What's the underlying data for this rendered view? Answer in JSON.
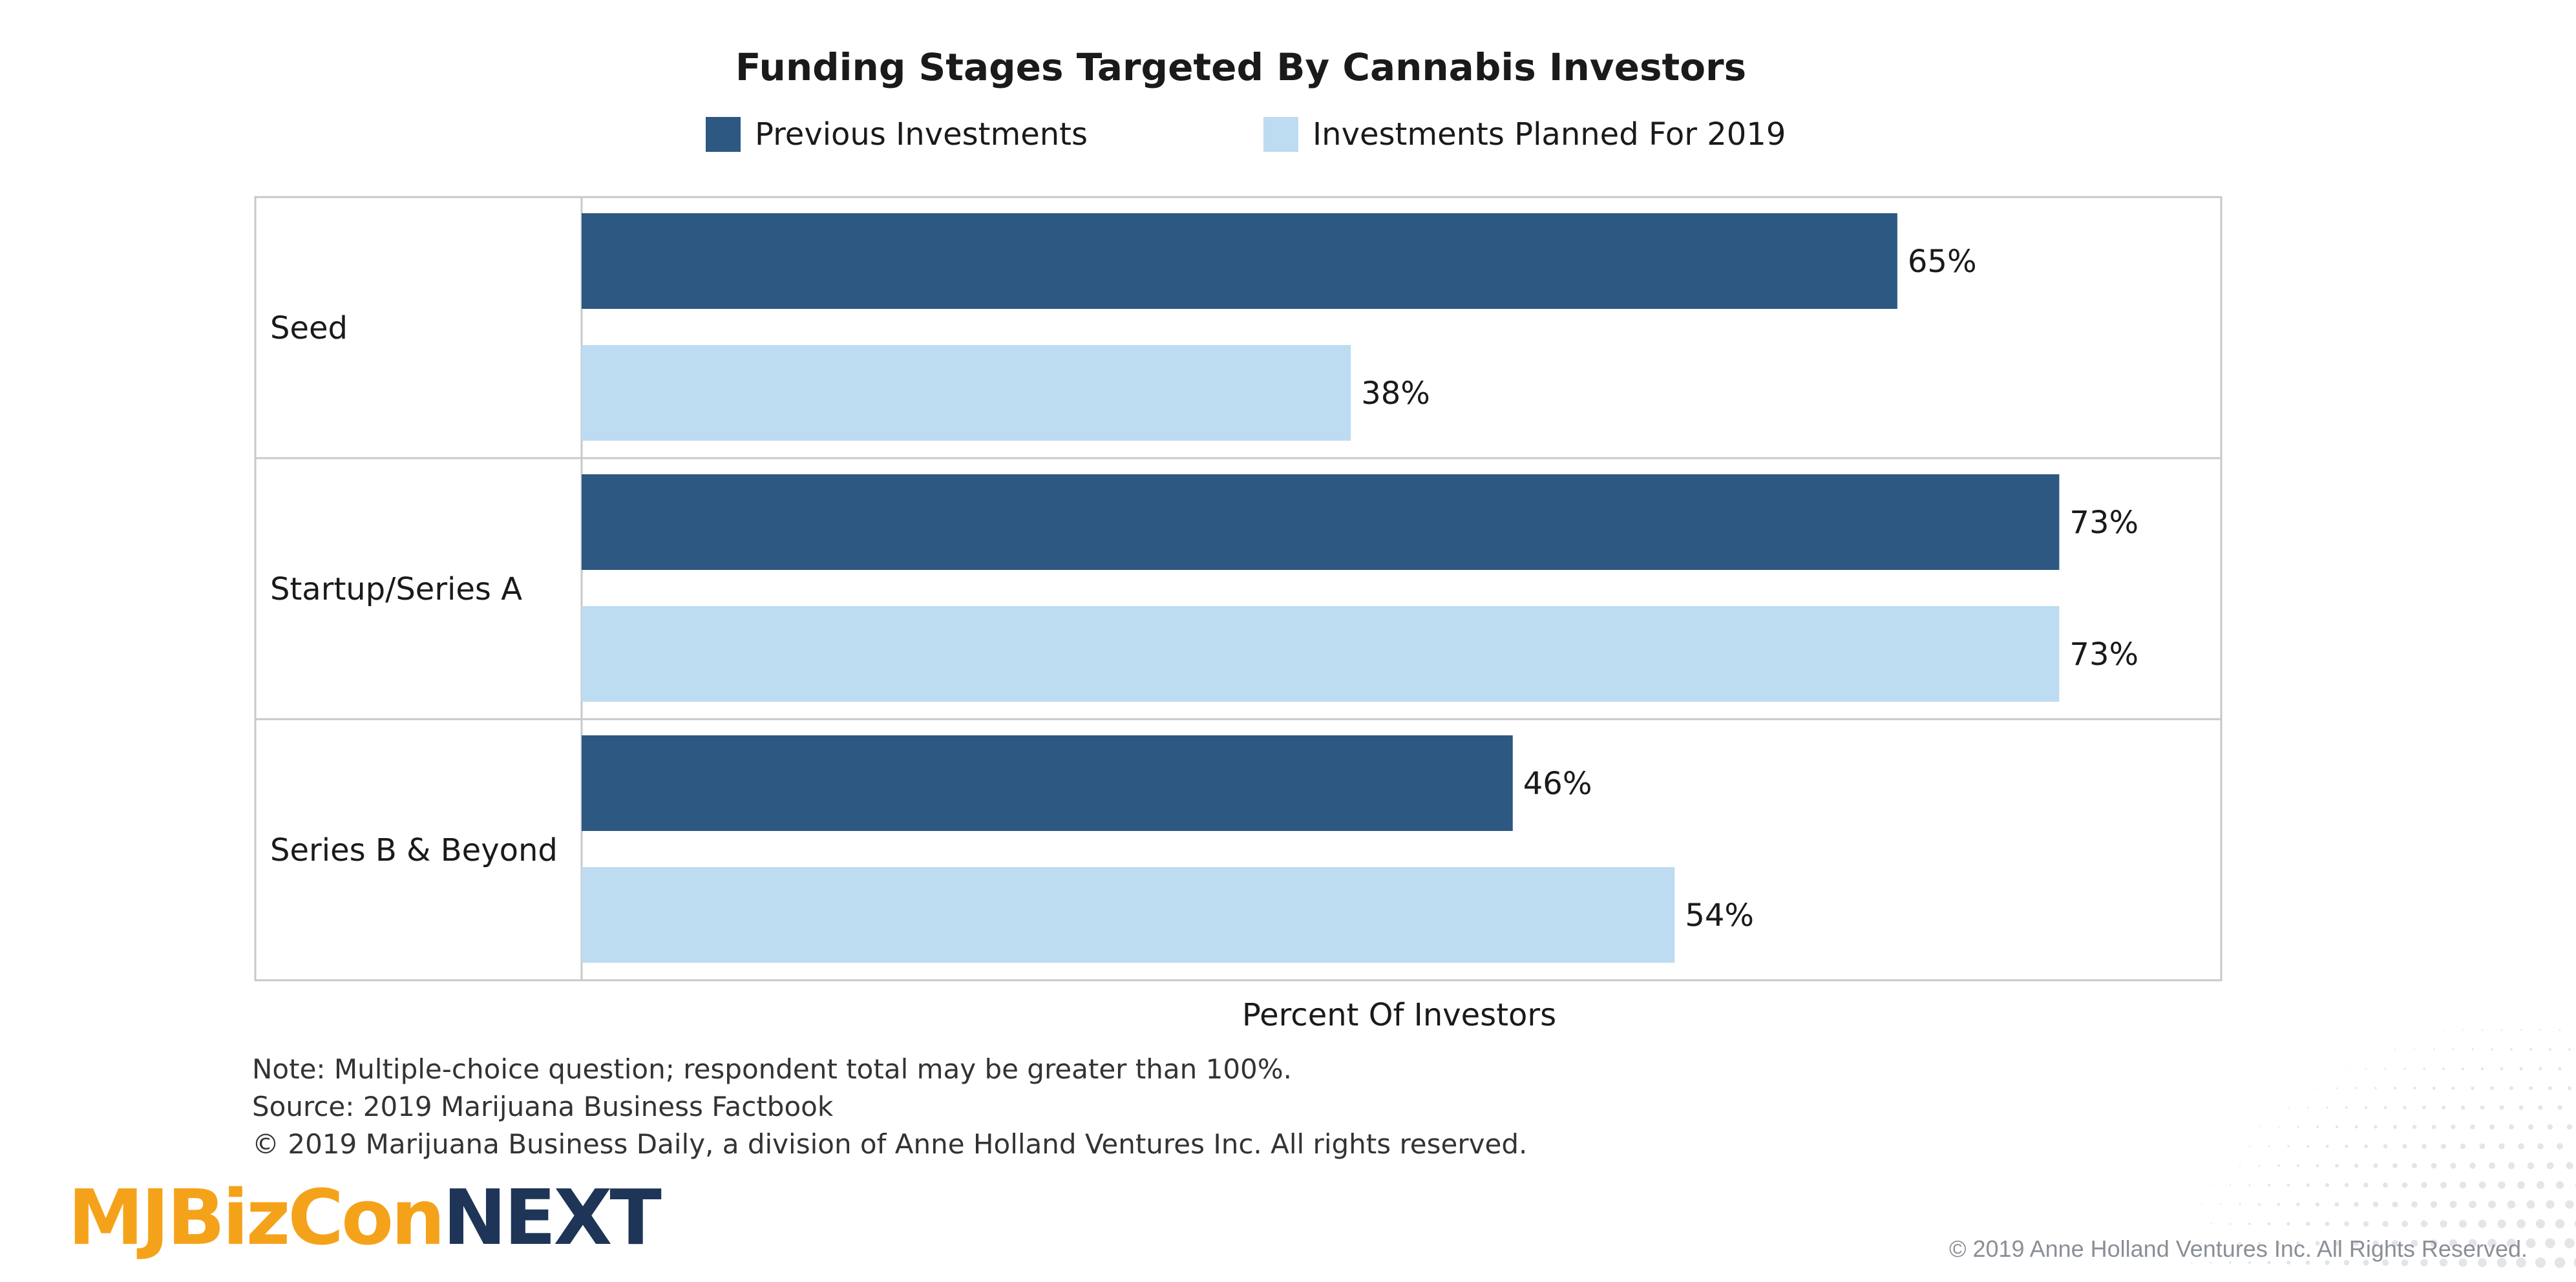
{
  "chart_data": {
    "type": "bar",
    "orientation": "horizontal",
    "title": "Funding Stages Targeted By Cannabis Investors",
    "xlabel": "Percent Of Investors",
    "ylabel": "",
    "categories": [
      "Seed",
      "Startup/Series A",
      "Series B & Beyond"
    ],
    "series": [
      {
        "name": "Previous Investments",
        "values": [
          65,
          73,
          46
        ],
        "color": "#2c5882"
      },
      {
        "name": "Investments Planned For 2019",
        "values": [
          38,
          73,
          54
        ],
        "color": "#bddcf1"
      }
    ],
    "value_suffix": "%",
    "xlim": [
      0,
      81
    ],
    "legend_position": "top",
    "grid": false
  },
  "notes": {
    "note": "Note: Multiple-choice question; respondent total may be greater than 100%.",
    "source": "Source: 2019 Marijuana Business Factbook",
    "copyright": "© 2019 Marijuana Business Daily, a division of Anne Holland Ventures Inc. All rights reserved."
  },
  "branding": {
    "logo_part1": "MJBizCon",
    "logo_part2": "NEXT",
    "logo_color1": "#f5a21b",
    "logo_color2": "#1f3557",
    "footer_copyright": "© 2019 Anne Holland Ventures Inc. All Rights Reserved."
  }
}
